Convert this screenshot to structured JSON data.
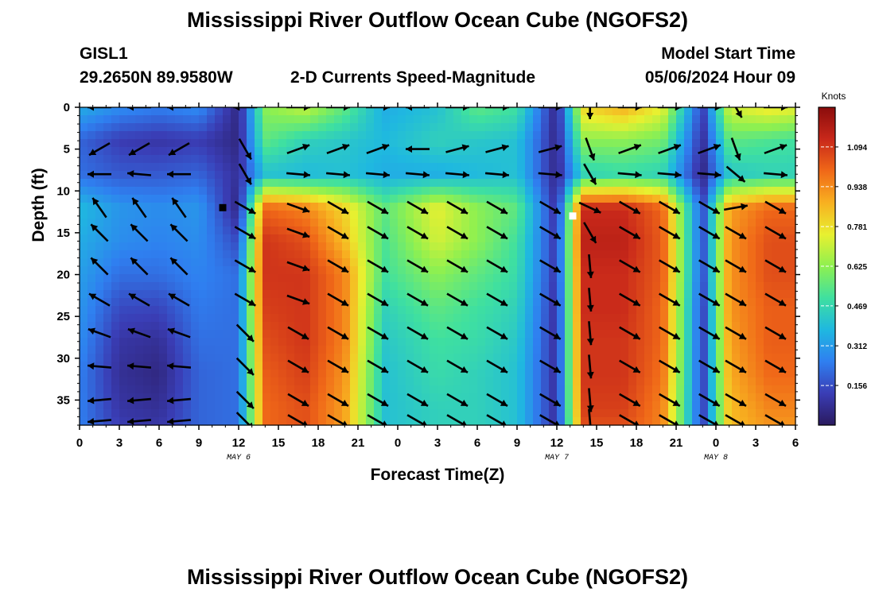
{
  "header": {
    "title": "Mississippi River Outflow Ocean Cube (NGOFS2)",
    "station_id": "GISL1",
    "station_coords": "29.2650N  89.9580W",
    "plot_title": "2-D Currents Speed-Magnitude",
    "model_start_label": "Model Start Time",
    "model_start_value": "05/06/2024 Hour 09"
  },
  "footer": {
    "title": "Mississippi River Outflow Ocean Cube (NGOFS2)"
  },
  "chart_data": {
    "type": "heatmap",
    "xlabel": "Forecast Time(Z)",
    "ylabel": "Depth (ft)",
    "x_tick_labels": [
      "0",
      "3",
      "6",
      "9",
      "12",
      "15",
      "18",
      "21",
      "0",
      "3",
      "6",
      "9",
      "12",
      "15",
      "18",
      "21",
      "0",
      "3",
      "6"
    ],
    "x_range_hours": [
      0,
      54
    ],
    "date_labels": [
      {
        "label": "MAY 6",
        "hour": 12
      },
      {
        "label": "MAY 7",
        "hour": 36
      },
      {
        "label": "MAY 8",
        "hour": 48
      }
    ],
    "y_ticks": [
      0,
      5,
      10,
      15,
      20,
      25,
      30,
      35
    ],
    "y_range": [
      0,
      38
    ],
    "y_inverted": true,
    "colorbar": {
      "title": "Knots",
      "ticks": [
        "1.094",
        "0.938",
        "0.781",
        "0.625",
        "0.469",
        "0.312",
        "0.156"
      ],
      "range": [
        0,
        1.25
      ],
      "colors": [
        "#2a1a5e",
        "#3a3db5",
        "#2f7ff0",
        "#1fb8e0",
        "#3fe0a0",
        "#8ef050",
        "#e8f030",
        "#f8b020",
        "#f06818",
        "#c8281a",
        "#8a0c0c"
      ]
    },
    "time_hours": [
      0,
      3,
      6,
      9,
      12,
      14,
      17,
      20,
      23,
      27,
      30,
      33,
      36,
      38,
      41,
      44,
      47,
      49,
      52,
      54
    ],
    "depth_ft": [
      0,
      4,
      8,
      12,
      16,
      20,
      24,
      28,
      32,
      36,
      38
    ],
    "speed_knots": [
      [
        0.35,
        0.28,
        0.25,
        0.28,
        0.05,
        0.62,
        0.7,
        0.55,
        0.35,
        0.4,
        0.55,
        0.5,
        0.05,
        0.8,
        0.88,
        0.75,
        0.12,
        0.72,
        0.78,
        0.75
      ],
      [
        0.2,
        0.12,
        0.1,
        0.12,
        0.05,
        0.55,
        0.45,
        0.42,
        0.38,
        0.45,
        0.42,
        0.4,
        0.05,
        0.62,
        0.62,
        0.58,
        0.08,
        0.55,
        0.52,
        0.5
      ],
      [
        0.22,
        0.18,
        0.18,
        0.2,
        0.08,
        0.4,
        0.38,
        0.4,
        0.35,
        0.35,
        0.38,
        0.4,
        0.05,
        0.45,
        0.48,
        0.45,
        0.05,
        0.42,
        0.45,
        0.45
      ],
      [
        0.38,
        0.3,
        0.28,
        0.3,
        0.05,
        1.0,
        0.95,
        0.8,
        0.55,
        0.75,
        0.62,
        0.55,
        0.08,
        1.12,
        1.12,
        1.0,
        0.15,
        0.9,
        1.0,
        1.0
      ],
      [
        0.35,
        0.28,
        0.26,
        0.28,
        0.15,
        1.1,
        1.05,
        0.85,
        0.52,
        0.72,
        0.62,
        0.5,
        0.1,
        1.15,
        1.15,
        1.02,
        0.15,
        0.92,
        1.05,
        1.05
      ],
      [
        0.32,
        0.22,
        0.22,
        0.26,
        0.22,
        1.1,
        1.1,
        0.95,
        0.5,
        0.62,
        0.55,
        0.48,
        0.1,
        1.12,
        1.12,
        1.02,
        0.15,
        0.92,
        1.05,
        1.05
      ],
      [
        0.3,
        0.15,
        0.14,
        0.24,
        0.22,
        1.08,
        1.1,
        0.95,
        0.45,
        0.55,
        0.5,
        0.45,
        0.08,
        1.12,
        1.12,
        1.0,
        0.12,
        0.92,
        1.02,
        1.02
      ],
      [
        0.28,
        0.1,
        0.08,
        0.22,
        0.22,
        1.05,
        1.1,
        0.95,
        0.42,
        0.5,
        0.48,
        0.42,
        0.08,
        1.1,
        1.1,
        1.0,
        0.12,
        0.9,
        1.02,
        1.02
      ],
      [
        0.25,
        0.08,
        0.05,
        0.2,
        0.22,
        1.02,
        1.08,
        0.92,
        0.4,
        0.48,
        0.45,
        0.4,
        0.08,
        1.1,
        1.1,
        0.98,
        0.12,
        0.88,
        1.0,
        1.0
      ],
      [
        0.25,
        0.1,
        0.08,
        0.2,
        0.22,
        1.0,
        1.05,
        0.9,
        0.4,
        0.45,
        0.45,
        0.4,
        0.08,
        1.08,
        1.08,
        0.95,
        0.12,
        0.85,
        0.95,
        0.95
      ],
      [
        0.25,
        0.12,
        0.1,
        0.2,
        0.22,
        1.0,
        1.05,
        0.9,
        0.4,
        0.45,
        0.45,
        0.4,
        0.08,
        1.05,
        1.05,
        0.95,
        0.12,
        0.85,
        0.92,
        0.92
      ]
    ],
    "vector_depths_ft": [
      0,
      5,
      8,
      12,
      15,
      19,
      23,
      27,
      31,
      35,
      37.5
    ],
    "vector_times_hours": [
      1.5,
      4.5,
      7.5,
      12.5,
      16.5,
      19.5,
      22.5,
      25.5,
      28.5,
      31.5,
      35.5,
      38.5,
      41.5,
      44.5,
      47.5,
      49.5,
      52.5
    ],
    "vector_direction_deg": [
      [
        180,
        180,
        180,
        180,
        0,
        0,
        0,
        180,
        0,
        0,
        0,
        270,
        0,
        0,
        0,
        300,
        0
      ],
      [
        210,
        210,
        210,
        300,
        20,
        20,
        20,
        180,
        15,
        15,
        15,
        290,
        20,
        20,
        20,
        290,
        20
      ],
      [
        180,
        175,
        180,
        300,
        355,
        355,
        355,
        355,
        355,
        355,
        355,
        300,
        355,
        355,
        355,
        320,
        355
      ],
      [
        125,
        125,
        125,
        330,
        340,
        330,
        330,
        330,
        330,
        330,
        330,
        335,
        330,
        330,
        330,
        10,
        330
      ],
      [
        135,
        135,
        135,
        330,
        340,
        330,
        330,
        330,
        330,
        330,
        330,
        300,
        330,
        330,
        330,
        330,
        330
      ],
      [
        135,
        135,
        135,
        330,
        340,
        330,
        330,
        330,
        330,
        330,
        330,
        275,
        330,
        330,
        330,
        330,
        330
      ],
      [
        150,
        150,
        150,
        330,
        340,
        330,
        330,
        330,
        330,
        330,
        330,
        275,
        330,
        330,
        330,
        330,
        330
      ],
      [
        160,
        160,
        160,
        315,
        330,
        330,
        330,
        330,
        330,
        330,
        330,
        275,
        330,
        330,
        330,
        330,
        330
      ],
      [
        175,
        175,
        175,
        315,
        330,
        330,
        330,
        330,
        330,
        330,
        330,
        275,
        330,
        330,
        330,
        330,
        330
      ],
      [
        185,
        185,
        185,
        315,
        330,
        330,
        330,
        330,
        330,
        330,
        330,
        275,
        330,
        330,
        330,
        330,
        330
      ],
      [
        185,
        185,
        185,
        315,
        330,
        330,
        330,
        330,
        330,
        330,
        330,
        275,
        330,
        330,
        330,
        330,
        330
      ]
    ],
    "markers": [
      {
        "hour": 10.8,
        "depth": 12,
        "color": "#000000"
      },
      {
        "hour": 37.2,
        "depth": 13,
        "color": "#ffffff"
      }
    ]
  }
}
